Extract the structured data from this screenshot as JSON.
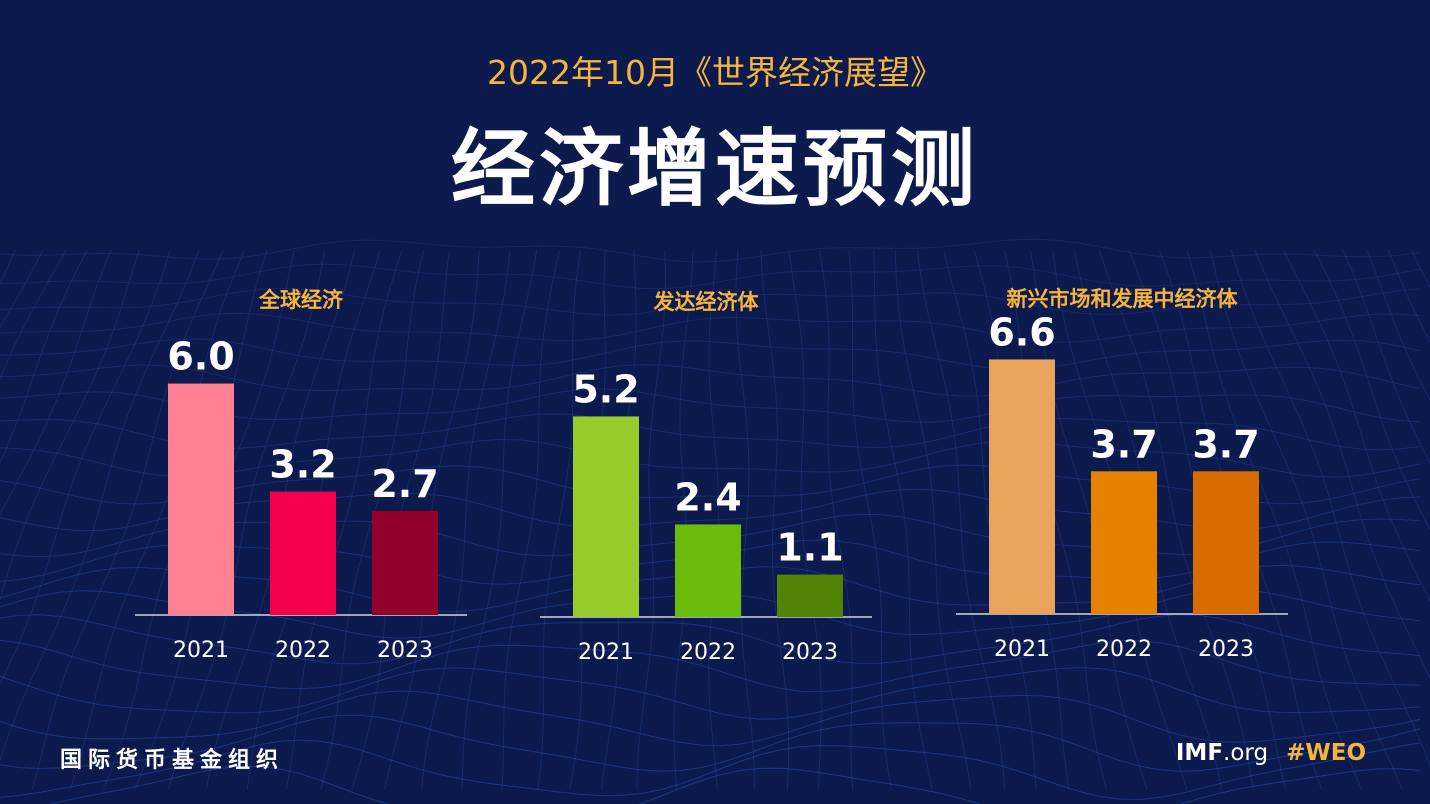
{
  "header": {
    "subtitle": "2022年10月《世界经济展望》",
    "title": "经济增速预测"
  },
  "chart_data": [
    {
      "type": "bar",
      "title": "全球经济",
      "categories": [
        "2021",
        "2022",
        "2023"
      ],
      "values": [
        6.0,
        3.2,
        2.7
      ],
      "labels": [
        "6.0",
        "3.2",
        "2.7"
      ],
      "colors": [
        "#ff8090",
        "#f5004c",
        "#93002c"
      ],
      "ylim": [
        0,
        7
      ]
    },
    {
      "type": "bar",
      "title": "发达经济体",
      "categories": [
        "2021",
        "2022",
        "2023"
      ],
      "values": [
        5.2,
        2.4,
        1.1
      ],
      "labels": [
        "5.2",
        "2.4",
        "1.1"
      ],
      "colors": [
        "#98cc2c",
        "#6abd0a",
        "#528304"
      ],
      "ylim": [
        0,
        7
      ]
    },
    {
      "type": "bar",
      "title": "新兴市场和发展中经济体",
      "categories": [
        "2021",
        "2022",
        "2023"
      ],
      "values": [
        6.6,
        3.7,
        3.7
      ],
      "labels": [
        "6.6",
        "3.7",
        "3.7"
      ],
      "colors": [
        "#e9a35a",
        "#e68200",
        "#d96c00"
      ],
      "ylim": [
        0,
        7
      ]
    }
  ],
  "footer": {
    "org": "国际货币基金组织",
    "imf": "IMF",
    "domain": ".org",
    "hashtag": "#WEO"
  },
  "colors": {
    "background": "#0c1a4d",
    "accent": "#f6b53a",
    "text": "#ffffff",
    "grid": "#2a4fb0"
  }
}
